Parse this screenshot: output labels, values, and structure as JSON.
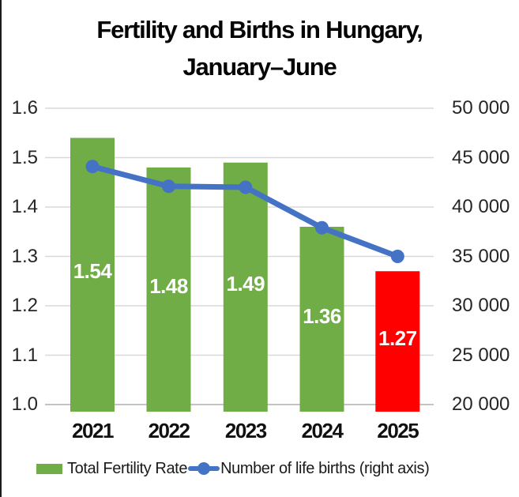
{
  "title": {
    "line1": "Fertility and Births in Hungary,",
    "line2": "January–June"
  },
  "chart_data": {
    "type": "combo-bar-line",
    "title": "Fertility and Births in Hungary, January–June",
    "categories": [
      "2021",
      "2022",
      "2023",
      "2024",
      "2025"
    ],
    "series": [
      {
        "name": "Total Fertility Rate",
        "type": "bar",
        "axis": "left",
        "values": [
          1.54,
          1.48,
          1.49,
          1.36,
          1.27
        ],
        "labels": [
          "1.54",
          "1.48",
          "1.49",
          "1.36",
          "1.27"
        ],
        "colors": [
          "#70AD47",
          "#70AD47",
          "#70AD47",
          "#70AD47",
          "#FF0000"
        ]
      },
      {
        "name": "Number of life births (right axis)",
        "type": "line",
        "axis": "right",
        "values": [
          44100,
          42100,
          42000,
          37900,
          35000
        ],
        "color": "#4472C4"
      }
    ],
    "left_axis": {
      "min": 1.0,
      "max": 1.6,
      "ticks": [
        "1.6",
        "1.5",
        "1.4",
        "1.3",
        "1.2",
        "1.1",
        "1.0"
      ]
    },
    "right_axis": {
      "min": 20000,
      "max": 50000,
      "ticks": [
        "50 000",
        "45 000",
        "40 000",
        "35 000",
        "30 000",
        "25 000",
        "20 000"
      ]
    },
    "grid": true,
    "gridline_color": "#D9D9D9",
    "axis_line_color": "#C3C3C3",
    "bar_label_color": "#FFFFFF",
    "legend_position": "bottom"
  }
}
